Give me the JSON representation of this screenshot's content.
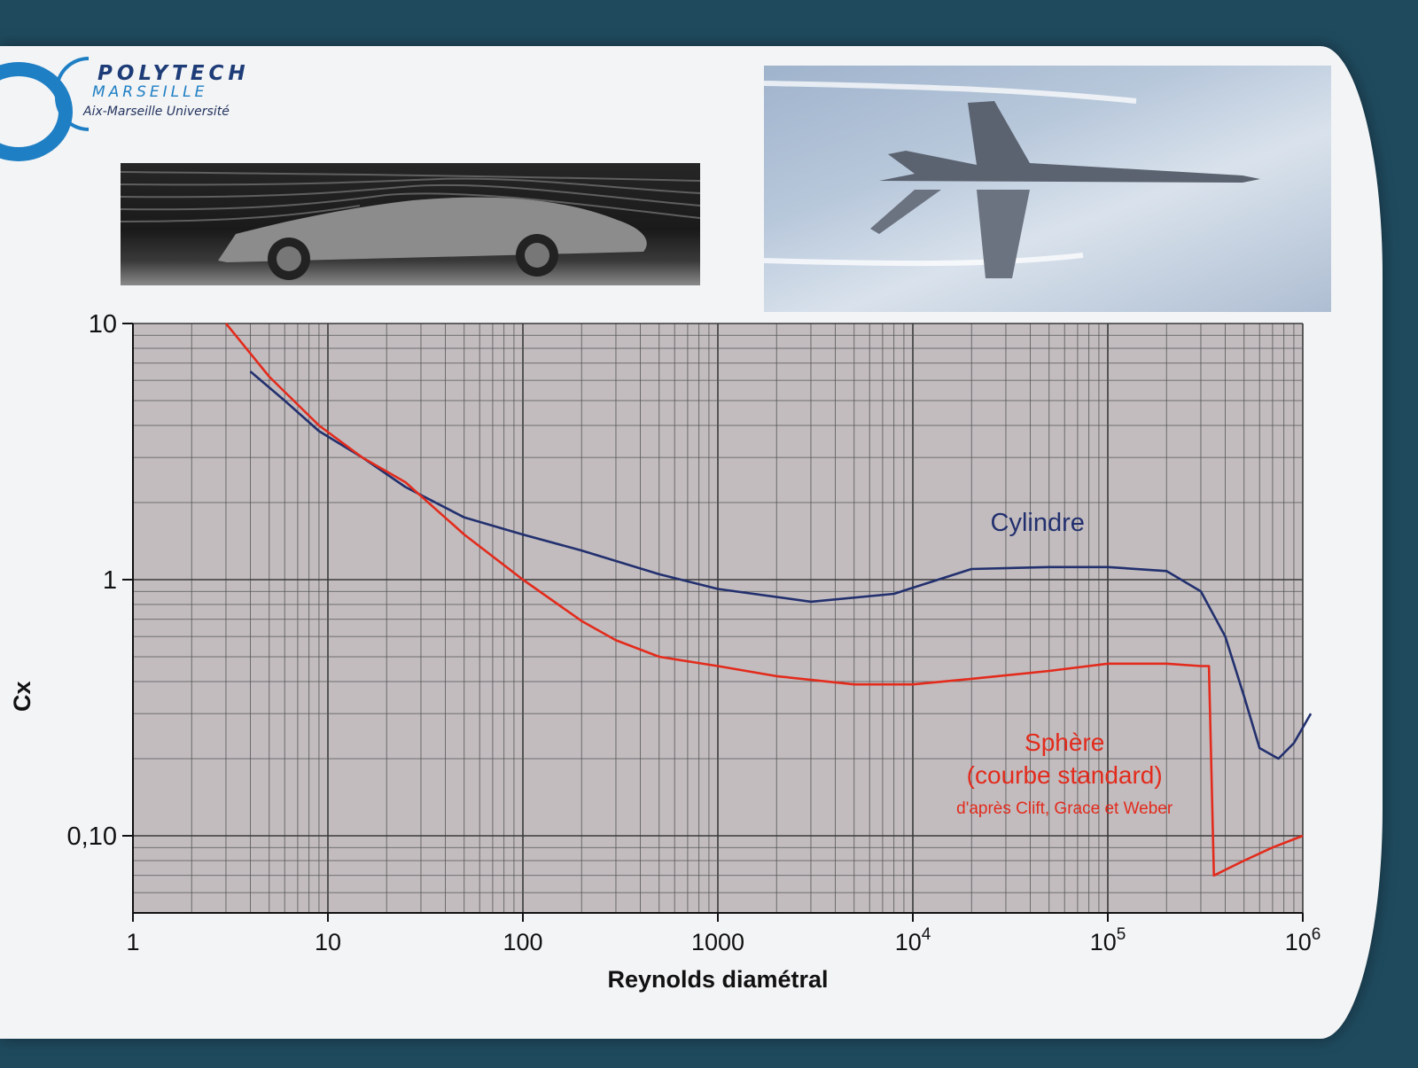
{
  "logo": {
    "title": "POLYTECH",
    "subtitle": "MARSEILLE",
    "university": "Aix-Marseille Université"
  },
  "photos": {
    "car": "wind-tunnel-car-photo",
    "jet": "fighter-jet-photo"
  },
  "chart_data": {
    "type": "line",
    "title": "",
    "xlabel": "Reynolds diamétral",
    "ylabel": "Cx",
    "x_scale": "log",
    "y_scale": "log",
    "xlim": [
      1,
      1000000
    ],
    "ylim": [
      0.05,
      10
    ],
    "x_ticks": [
      "1",
      "10",
      "100",
      "1000",
      "10^4",
      "10^5",
      "10^6"
    ],
    "y_ticks": [
      "0,10",
      "1",
      "10"
    ],
    "grid": true,
    "series": [
      {
        "name": "Cylindre",
        "color": "#22306e",
        "x": [
          4,
          6,
          9,
          15,
          25,
          50,
          100,
          200,
          500,
          1000,
          3000,
          8000,
          20000,
          50000,
          100000,
          200000,
          300000,
          400000,
          500000,
          600000,
          750000,
          900000,
          1100000
        ],
        "y": [
          6.5,
          5.0,
          3.8,
          3.0,
          2.3,
          1.75,
          1.5,
          1.3,
          1.05,
          0.92,
          0.82,
          0.88,
          1.1,
          1.12,
          1.12,
          1.08,
          0.9,
          0.6,
          0.35,
          0.22,
          0.2,
          0.23,
          0.3
        ]
      },
      {
        "name": "Sphère (courbe standard)",
        "note": "d'après Clift, Grace et Weber",
        "color": "#e32b1c",
        "x": [
          3,
          5,
          9,
          15,
          25,
          50,
          100,
          200,
          300,
          500,
          1000,
          2000,
          5000,
          10000,
          20000,
          50000,
          100000,
          200000,
          300000,
          330000,
          350000,
          500000,
          700000,
          1000000
        ],
        "y": [
          10,
          6.2,
          4.0,
          3.0,
          2.4,
          1.5,
          1.0,
          0.69,
          0.58,
          0.5,
          0.46,
          0.42,
          0.39,
          0.39,
          0.41,
          0.44,
          0.47,
          0.47,
          0.46,
          0.46,
          0.07,
          0.08,
          0.09,
          0.1
        ]
      }
    ],
    "annotations": {
      "cylinder": "Cylindre",
      "sphere_line1": "Sphère",
      "sphere_line2": "(courbe standard)",
      "source": "d'après Clift, Grace et Weber"
    }
  }
}
